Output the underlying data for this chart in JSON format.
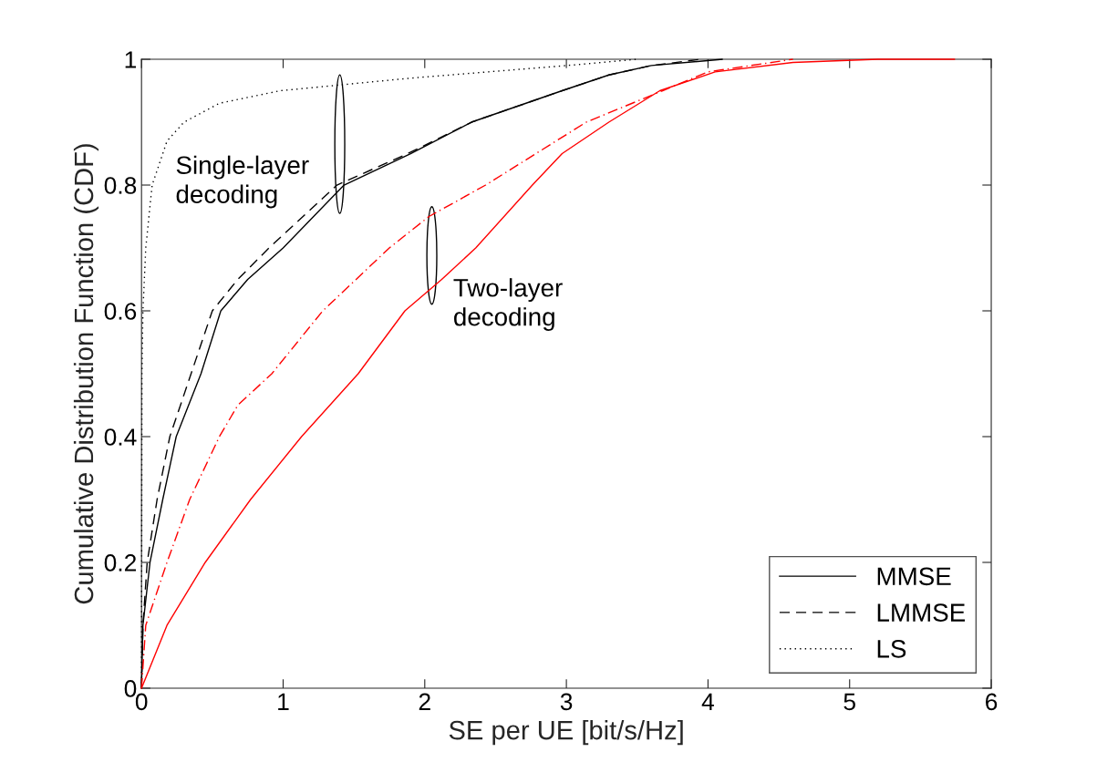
{
  "chart_data": {
    "type": "line",
    "xlabel": "SE per UE [bit/s/Hz]",
    "ylabel": "Cumulative Distribution Function (CDF)",
    "xlim": [
      0,
      6
    ],
    "ylim": [
      0,
      1
    ],
    "xticks": [
      0,
      1,
      2,
      3,
      4,
      5,
      6
    ],
    "yticks": [
      0,
      0.2,
      0.4,
      0.6,
      0.8,
      1
    ],
    "grid": false,
    "legend": "bottom right",
    "marker": "none",
    "annotations": [
      "Single-layer\ndecoding",
      "Two-layer\ndecoding"
    ],
    "series": [
      {
        "name": "MMSE",
        "color": "#000000",
        "line_style": "solid",
        "x": [
          0,
          0.01,
          0.06,
          0.15,
          0.245,
          0.42,
          0.56,
          0.75,
          1.0,
          1.43,
          1.9,
          2.33,
          2.97,
          3.3,
          3.6,
          4.1
        ],
        "values": [
          0,
          0.1,
          0.2,
          0.3,
          0.4,
          0.5,
          0.6,
          0.65,
          0.7,
          0.8,
          0.85,
          0.9,
          0.95,
          0.975,
          0.99,
          1
        ]
      },
      {
        "name": "LMMSE",
        "color": "#000000",
        "line_style": "dashed",
        "x": [
          0,
          0.01,
          0.04,
          0.11,
          0.2,
          0.35,
          0.5,
          0.68,
          0.9,
          1.38,
          1.88,
          2.33,
          2.97,
          3.3,
          3.6,
          3.95
        ],
        "values": [
          0,
          0.1,
          0.2,
          0.3,
          0.4,
          0.5,
          0.6,
          0.65,
          0.7,
          0.8,
          0.85,
          0.9,
          0.95,
          0.975,
          0.99,
          1
        ]
      },
      {
        "name": "LS",
        "color": "#000000",
        "line_style": "dotted",
        "x": [
          0,
          0.003,
          0.01,
          0.03,
          0.075,
          0.18,
          0.3,
          0.55,
          0.98,
          1.9,
          3.0,
          3.5
        ],
        "values": [
          0,
          0.5,
          0.6,
          0.7,
          0.8,
          0.87,
          0.9,
          0.93,
          0.95,
          0.97,
          0.99,
          1
        ]
      },
      {
        "color": "#ff0000",
        "line_style": "solid",
        "x": [
          0,
          0.18,
          0.45,
          0.77,
          1.13,
          1.53,
          1.86,
          2.12,
          2.36,
          2.76,
          2.97,
          3.3,
          3.66,
          4.05,
          4.6,
          5.2,
          5.74
        ],
        "values": [
          0,
          0.1,
          0.2,
          0.3,
          0.4,
          0.5,
          0.6,
          0.65,
          0.7,
          0.8,
          0.85,
          0.9,
          0.95,
          0.98,
          0.995,
          1,
          1
        ]
      },
      {
        "color": "#ff0000",
        "line_style": "dashdot",
        "x": [
          0,
          0.03,
          0.18,
          0.34,
          0.55,
          0.68,
          0.92,
          1.28,
          1.75,
          2.03,
          2.43,
          3.14,
          3.68,
          4.0,
          4.6
        ],
        "values": [
          0,
          0.1,
          0.2,
          0.3,
          0.4,
          0.45,
          0.5,
          0.6,
          0.7,
          0.75,
          0.8,
          0.9,
          0.95,
          0.98,
          1
        ]
      }
    ]
  }
}
